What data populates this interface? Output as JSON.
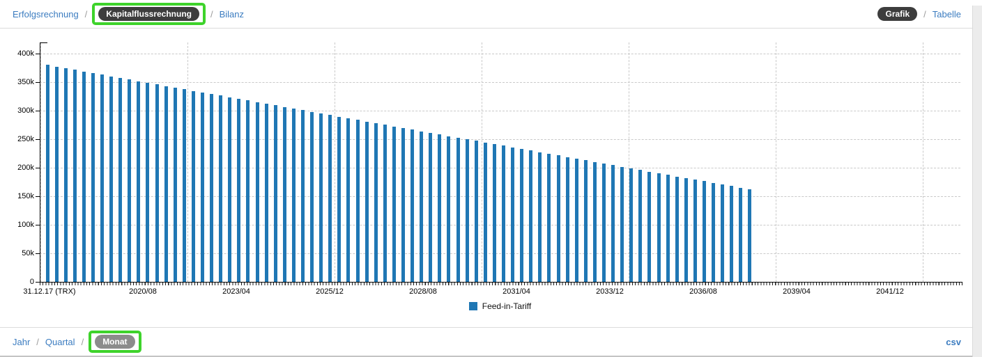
{
  "nav": {
    "separator": "/",
    "items": [
      {
        "label": "Erfolgsrechnung"
      },
      {
        "label": "Kapitalflussrechnung"
      },
      {
        "label": "Bilanz"
      }
    ],
    "view_toggle": {
      "active": "Grafik",
      "inactive": "Tabelle"
    }
  },
  "footer": {
    "separator": "/",
    "period_options": [
      {
        "label": "Jahr"
      },
      {
        "label": "Quartal"
      },
      {
        "label": "Monat"
      }
    ],
    "csv_label": "csv"
  },
  "colors": {
    "bar": "#1f77b4",
    "link": "#3b7cc0",
    "active_pill": "#3d3d3d",
    "gray_pill": "#8c8c8c",
    "annotation_green": "#3ed32b",
    "gridline": "#c9c9c9"
  },
  "chart_data": {
    "type": "bar",
    "title": "",
    "xlabel": "",
    "ylabel": "",
    "ylim": [
      0,
      420000
    ],
    "grid": "dashed",
    "legend_position": "bottom-center",
    "y_ticks": [
      {
        "value": 0,
        "label": "0"
      },
      {
        "value": 50000,
        "label": "50k"
      },
      {
        "value": 100000,
        "label": "100k"
      },
      {
        "value": 150000,
        "label": "150k"
      },
      {
        "value": 200000,
        "label": "200k"
      },
      {
        "value": 250000,
        "label": "250k"
      },
      {
        "value": 300000,
        "label": "300k"
      },
      {
        "value": 350000,
        "label": "350k"
      },
      {
        "value": 400000,
        "label": "400k"
      }
    ],
    "x_tick_labels": [
      "31.12.17 (TRX)",
      "2020/08",
      "2023/04",
      "2025/12",
      "2028/08",
      "2031/04",
      "2033/12",
      "2036/08",
      "2039/04",
      "2041/12"
    ],
    "series": [
      {
        "name": "Feed-in-Tariff",
        "values": [
          380000,
          377170,
          374340,
          371510,
          368680,
          365850,
          363020,
          360190,
          357360,
          354530,
          351700,
          348870,
          346040,
          343210,
          340380,
          337550,
          334720,
          331890,
          329060,
          326230,
          323400,
          320570,
          317740,
          314910,
          312080,
          309250,
          306420,
          303590,
          300760,
          297930,
          295100,
          292270,
          289440,
          286610,
          283780,
          280950,
          278120,
          275290,
          272460,
          269630,
          266800,
          263970,
          261140,
          258310,
          255480,
          252650,
          249820,
          246990,
          244160,
          241330,
          238500,
          235670,
          232840,
          230010,
          227180,
          224350,
          221520,
          218690,
          215860,
          213030,
          210200,
          207370,
          204540,
          201710,
          198880,
          196050,
          193220,
          190390,
          187560,
          184730,
          181900,
          179070,
          176240,
          173410,
          170580,
          167750,
          164920,
          162090
        ]
      }
    ]
  }
}
